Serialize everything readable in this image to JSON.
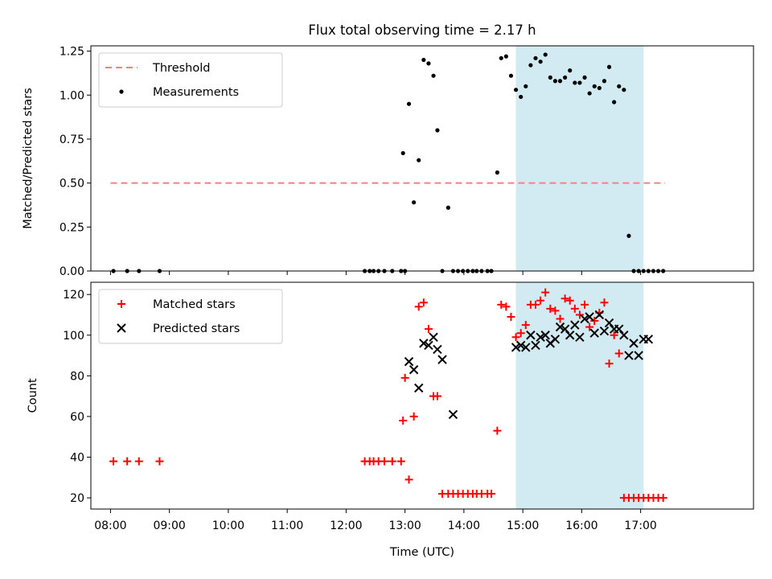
{
  "title": "Flux total observing time = 2.17 h",
  "colors": {
    "threshold": "#ff7f7f",
    "measurement": "#000000",
    "matched": "#ff0000",
    "predicted": "#000000",
    "span": "#add8e6"
  },
  "chart_data": [
    {
      "type": "scatter",
      "panel": "top",
      "ylabel": "Matched/Predicted stars",
      "xlabel": "",
      "ylim": [
        0,
        1.28
      ],
      "xlim": [
        "07:40",
        "18:55"
      ],
      "grid": false,
      "legend": {
        "placement": "top-left",
        "entries": [
          "Threshold",
          "Measurements"
        ]
      },
      "yticks": [
        {
          "value": 0,
          "label": "0.00"
        },
        {
          "value": 0.25,
          "label": "0.25"
        },
        {
          "value": 0.5,
          "label": "0.50"
        },
        {
          "value": 0.75,
          "label": "0.75"
        },
        {
          "value": 1.0,
          "label": "1.00"
        },
        {
          "value": 1.25,
          "label": "1.25"
        }
      ],
      "shaded_span": [
        "14:53",
        "17:03"
      ],
      "series": [
        {
          "name": "Threshold",
          "kind": "dashed-line",
          "x": [
            "08:00",
            "17:25"
          ],
          "y": [
            0.5,
            0.5
          ]
        },
        {
          "name": "Measurements",
          "kind": "points",
          "x": [
            "08:03",
            "08:17",
            "08:29",
            "08:50",
            "12:19",
            "12:24",
            "12:28",
            "12:33",
            "12:39",
            "12:47",
            "12:56",
            "12:58",
            "13:00",
            "13:04",
            "13:09",
            "13:14",
            "13:19",
            "13:24",
            "13:29",
            "13:33",
            "13:38",
            "13:44",
            "13:49",
            "13:54",
            "13:59",
            "14:04",
            "14:09",
            "14:13",
            "14:18",
            "14:24",
            "14:28",
            "14:34",
            "14:38",
            "14:43",
            "14:48",
            "14:53",
            "14:58",
            "15:03",
            "15:08",
            "15:13",
            "15:18",
            "15:23",
            "15:28",
            "15:33",
            "15:38",
            "15:43",
            "15:48",
            "15:53",
            "15:58",
            "16:03",
            "16:08",
            "16:13",
            "16:18",
            "16:23",
            "16:28",
            "16:33",
            "16:38",
            "16:43",
            "16:48",
            "16:53",
            "16:58",
            "17:03",
            "17:08",
            "17:13",
            "17:18",
            "17:23"
          ],
          "y": [
            0,
            0,
            0,
            0,
            0,
            0,
            0,
            0,
            0,
            0,
            0,
            0.67,
            0,
            0.95,
            0.39,
            0.63,
            1.2,
            1.18,
            1.11,
            0.8,
            0,
            0.36,
            0,
            0,
            0,
            0,
            0,
            0,
            0,
            0,
            0,
            0.56,
            1.21,
            1.22,
            1.11,
            1.03,
            0.99,
            1.05,
            1.17,
            1.21,
            1.19,
            1.23,
            1.1,
            1.08,
            1.08,
            1.1,
            1.14,
            1.07,
            1.07,
            1.1,
            1.01,
            1.05,
            1.04,
            1.08,
            1.16,
            0.96,
            1.05,
            1.03,
            0.2,
            0,
            0,
            0,
            0,
            0,
            0,
            0
          ]
        }
      ]
    },
    {
      "type": "scatter",
      "panel": "bottom",
      "ylabel": "Count",
      "xlabel": "Time (UTC)",
      "ylim": [
        14.5,
        126
      ],
      "xlim": [
        "07:40",
        "18:55"
      ],
      "grid": false,
      "legend": {
        "placement": "top-left",
        "entries": [
          "Matched stars",
          "Predicted stars"
        ]
      },
      "yticks": [
        {
          "value": 20,
          "label": "20"
        },
        {
          "value": 40,
          "label": "40"
        },
        {
          "value": 60,
          "label": "60"
        },
        {
          "value": 80,
          "label": "80"
        },
        {
          "value": 100,
          "label": "100"
        },
        {
          "value": 120,
          "label": "120"
        }
      ],
      "xticks": [
        "08:00",
        "09:00",
        "10:00",
        "11:00",
        "12:00",
        "13:00",
        "14:00",
        "15:00",
        "16:00",
        "17:00"
      ],
      "shaded_span": [
        "14:53",
        "17:03"
      ],
      "series": [
        {
          "name": "Matched stars",
          "marker": "plus",
          "x": [
            "08:03",
            "08:17",
            "08:29",
            "08:50",
            "12:19",
            "12:24",
            "12:28",
            "12:33",
            "12:39",
            "12:47",
            "12:56",
            "12:58",
            "13:00",
            "13:04",
            "13:09",
            "13:14",
            "13:19",
            "13:24",
            "13:29",
            "13:33",
            "13:38",
            "13:44",
            "13:49",
            "13:54",
            "13:59",
            "14:04",
            "14:09",
            "14:13",
            "14:18",
            "14:24",
            "14:28",
            "14:34",
            "14:38",
            "14:43",
            "14:48",
            "14:53",
            "14:58",
            "15:03",
            "15:08",
            "15:13",
            "15:18",
            "15:23",
            "15:28",
            "15:33",
            "15:38",
            "15:43",
            "15:48",
            "15:53",
            "15:58",
            "16:03",
            "16:08",
            "16:13",
            "16:18",
            "16:23",
            "16:28",
            "16:33",
            "16:38",
            "16:43",
            "16:48",
            "16:53",
            "16:58",
            "17:03",
            "17:08",
            "17:13",
            "17:18",
            "17:23"
          ],
          "y": [
            38,
            38,
            38,
            38,
            38,
            38,
            38,
            38,
            38,
            38,
            38,
            58,
            79,
            29,
            60,
            114,
            116,
            103,
            70,
            70,
            22,
            22,
            22,
            22,
            22,
            22,
            22,
            22,
            22,
            22,
            22,
            53,
            115,
            114,
            109,
            99,
            101,
            105,
            115,
            115,
            117,
            121,
            113,
            112,
            108,
            118,
            117,
            113,
            110,
            115,
            104,
            107,
            111,
            116,
            86,
            100,
            91,
            20,
            20,
            20,
            20,
            20,
            20,
            20,
            20,
            20
          ],
          "note_removed": true
        },
        {
          "name": "Predicted stars",
          "marker": "x",
          "x": [
            "13:04",
            "13:09",
            "13:14",
            "13:19",
            "13:24",
            "13:29",
            "13:33",
            "13:38",
            "13:49",
            "14:53",
            "14:58",
            "15:03",
            "15:08",
            "15:13",
            "15:18",
            "15:23",
            "15:28",
            "15:33",
            "15:38",
            "15:43",
            "15:48",
            "15:53",
            "15:58",
            "16:03",
            "16:08",
            "16:13",
            "16:18",
            "16:23",
            "16:28",
            "16:33",
            "16:38",
            "16:43",
            "16:48",
            "16:53",
            "16:58",
            "17:03",
            "17:08"
          ],
          "y": [
            87,
            83,
            74,
            96,
            95,
            99,
            93,
            88,
            61,
            94,
            95,
            94,
            100,
            95,
            99,
            100,
            96,
            98,
            104,
            103,
            100,
            105,
            99,
            108,
            109,
            101,
            110,
            102,
            106,
            103,
            103,
            100,
            90,
            96,
            90,
            98,
            98
          ]
        }
      ]
    }
  ]
}
